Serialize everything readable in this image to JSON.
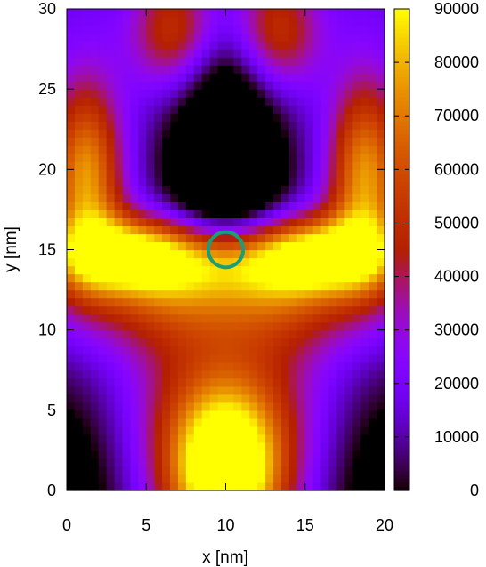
{
  "chart_data": {
    "type": "heatmap",
    "title": "",
    "xlabel": "x [nm]",
    "ylabel": "y [nm]",
    "xlim": [
      0,
      20
    ],
    "ylim": [
      0,
      30
    ],
    "x_ticks": [
      "0",
      "5",
      "10",
      "15",
      "20"
    ],
    "y_ticks": [
      "0",
      "5",
      "10",
      "15",
      "20",
      "25",
      "30"
    ],
    "colorbar": {
      "range": [
        0,
        90000
      ],
      "ticks": [
        "0",
        "10000",
        "20000",
        "30000",
        "40000",
        "50000",
        "60000",
        "70000",
        "80000",
        "90000"
      ],
      "palette": "gnuplot pm3d (black-purple-red-orange-yellow)"
    },
    "grid": false,
    "annotation": {
      "shape": "circle",
      "center": [
        10,
        15
      ],
      "radius": 1.1,
      "color": "#1a9e7a"
    },
    "features": [
      {
        "region": "bottom-center lobe",
        "approx_value": 90000
      },
      {
        "region": "central band y≈11-14",
        "approx_value": 50000
      },
      {
        "region": "side bands x≈1 and x≈19, y≈15-24",
        "approx_value": 60000
      },
      {
        "region": "central dip x≈10, y≈18",
        "approx_value": 5000
      },
      {
        "region": "bottom corners",
        "approx_value": 0
      },
      {
        "region": "top edge",
        "approx_value": 25000
      }
    ]
  }
}
